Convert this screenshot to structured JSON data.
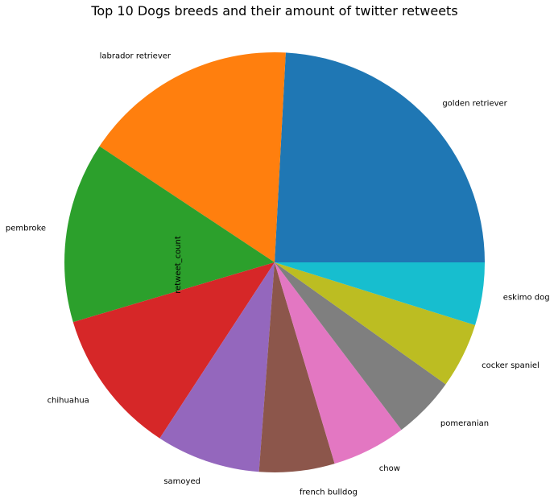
{
  "chart_data": {
    "type": "pie",
    "title": "Top 10 Dogs breeds and their amount of twitter retweets",
    "ylabel": "retweet_count",
    "categories": [
      "golden retriever",
      "labrador retriever",
      "pembroke",
      "chihuahua",
      "samoyed",
      "french bulldog",
      "chow",
      "pomeranian",
      "cocker spaniel",
      "eskimo dog"
    ],
    "values": [
      25.0,
      17.1,
      14.4,
      11.6,
      8.3,
      6.0,
      5.9,
      5.0,
      5.2,
      5.0
    ],
    "colors": [
      "#1f77b4",
      "#ff7f0e",
      "#2ca02c",
      "#d62728",
      "#9467bd",
      "#8c564b",
      "#e377c2",
      "#7f7f7f",
      "#bcbd22",
      "#17becf"
    ],
    "start_angle": "3 o'clock",
    "direction": "counterclockwise"
  }
}
